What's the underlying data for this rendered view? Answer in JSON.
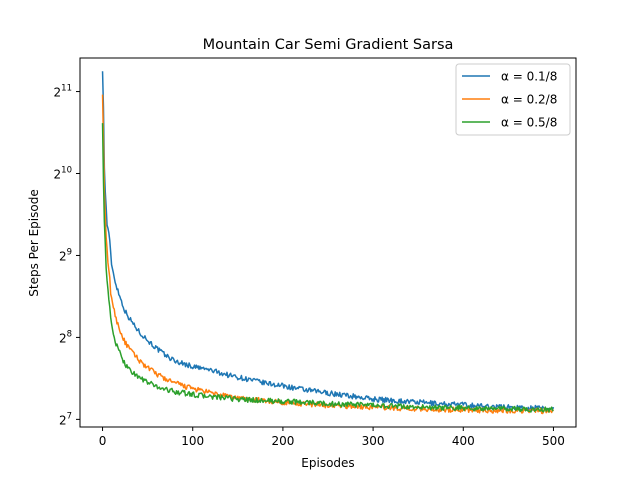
{
  "chart_data": {
    "type": "line",
    "title": "Mountain Car Semi Gradient Sarsa",
    "xlabel": "Episodes",
    "ylabel": "Steps Per Episode",
    "y_scale": "log2",
    "xlim": [
      -25,
      525
    ],
    "ylim": [
      120,
      2720
    ],
    "x_ticks": [
      0,
      100,
      200,
      300,
      400,
      500
    ],
    "y_ticks": [
      {
        "value": 128,
        "base": "2",
        "exp": "7"
      },
      {
        "value": 256,
        "base": "2",
        "exp": "8"
      },
      {
        "value": 512,
        "base": "2",
        "exp": "9"
      },
      {
        "value": 1024,
        "base": "2",
        "exp": "10"
      },
      {
        "value": 2048,
        "base": "2",
        "exp": "11"
      }
    ],
    "legend_position": "top-right",
    "grid": false,
    "series": [
      {
        "name": "α = 0.1/8",
        "color": "#1f77b4",
        "x": [
          0,
          1,
          2,
          3,
          4,
          5,
          6,
          8,
          10,
          12,
          15,
          20,
          25,
          30,
          40,
          50,
          60,
          70,
          80,
          100,
          120,
          140,
          160,
          180,
          200,
          225,
          250,
          275,
          300,
          325,
          350,
          375,
          400,
          425,
          450,
          475,
          500
        ],
        "y": [
          2560,
          1750,
          1100,
          880,
          760,
          680,
          640,
          560,
          480,
          440,
          400,
          355,
          320,
          300,
          270,
          250,
          233,
          220,
          210,
          200,
          194,
          186,
          180,
          174,
          170,
          164,
          160,
          156,
          152,
          150,
          148,
          146,
          145,
          143,
          142,
          141,
          140
        ]
      },
      {
        "name": "α = 0.2/8",
        "color": "#ff7f0e",
        "x": [
          0,
          1,
          2,
          3,
          4,
          5,
          6,
          8,
          10,
          12,
          15,
          20,
          25,
          30,
          40,
          50,
          60,
          70,
          80,
          100,
          120,
          140,
          160,
          180,
          200,
          225,
          250,
          275,
          300,
          325,
          350,
          375,
          400,
          425,
          450,
          475,
          500
        ],
        "y": [
          2100,
          1300,
          900,
          720,
          600,
          520,
          470,
          410,
          360,
          330,
          300,
          268,
          245,
          232,
          212,
          198,
          188,
          180,
          174,
          166,
          160,
          155,
          152,
          150,
          148,
          146,
          144,
          143,
          142,
          141,
          140,
          139,
          139,
          138,
          138,
          138,
          137
        ]
      },
      {
        "name": "α = 0.5/8",
        "color": "#2ca02c",
        "x": [
          0,
          1,
          2,
          3,
          4,
          5,
          6,
          8,
          10,
          12,
          15,
          20,
          25,
          30,
          40,
          50,
          60,
          70,
          80,
          100,
          120,
          140,
          160,
          180,
          200,
          225,
          250,
          275,
          300,
          325,
          350,
          375,
          400,
          425,
          450,
          475,
          500
        ],
        "y": [
          1650,
          1000,
          700,
          560,
          470,
          410,
          370,
          320,
          285,
          265,
          242,
          220,
          205,
          195,
          183,
          175,
          169,
          165,
          162,
          158,
          155,
          153,
          151,
          150,
          149,
          148,
          146,
          145,
          144,
          143,
          142,
          141,
          141,
          140,
          140,
          139,
          139
        ]
      }
    ]
  }
}
